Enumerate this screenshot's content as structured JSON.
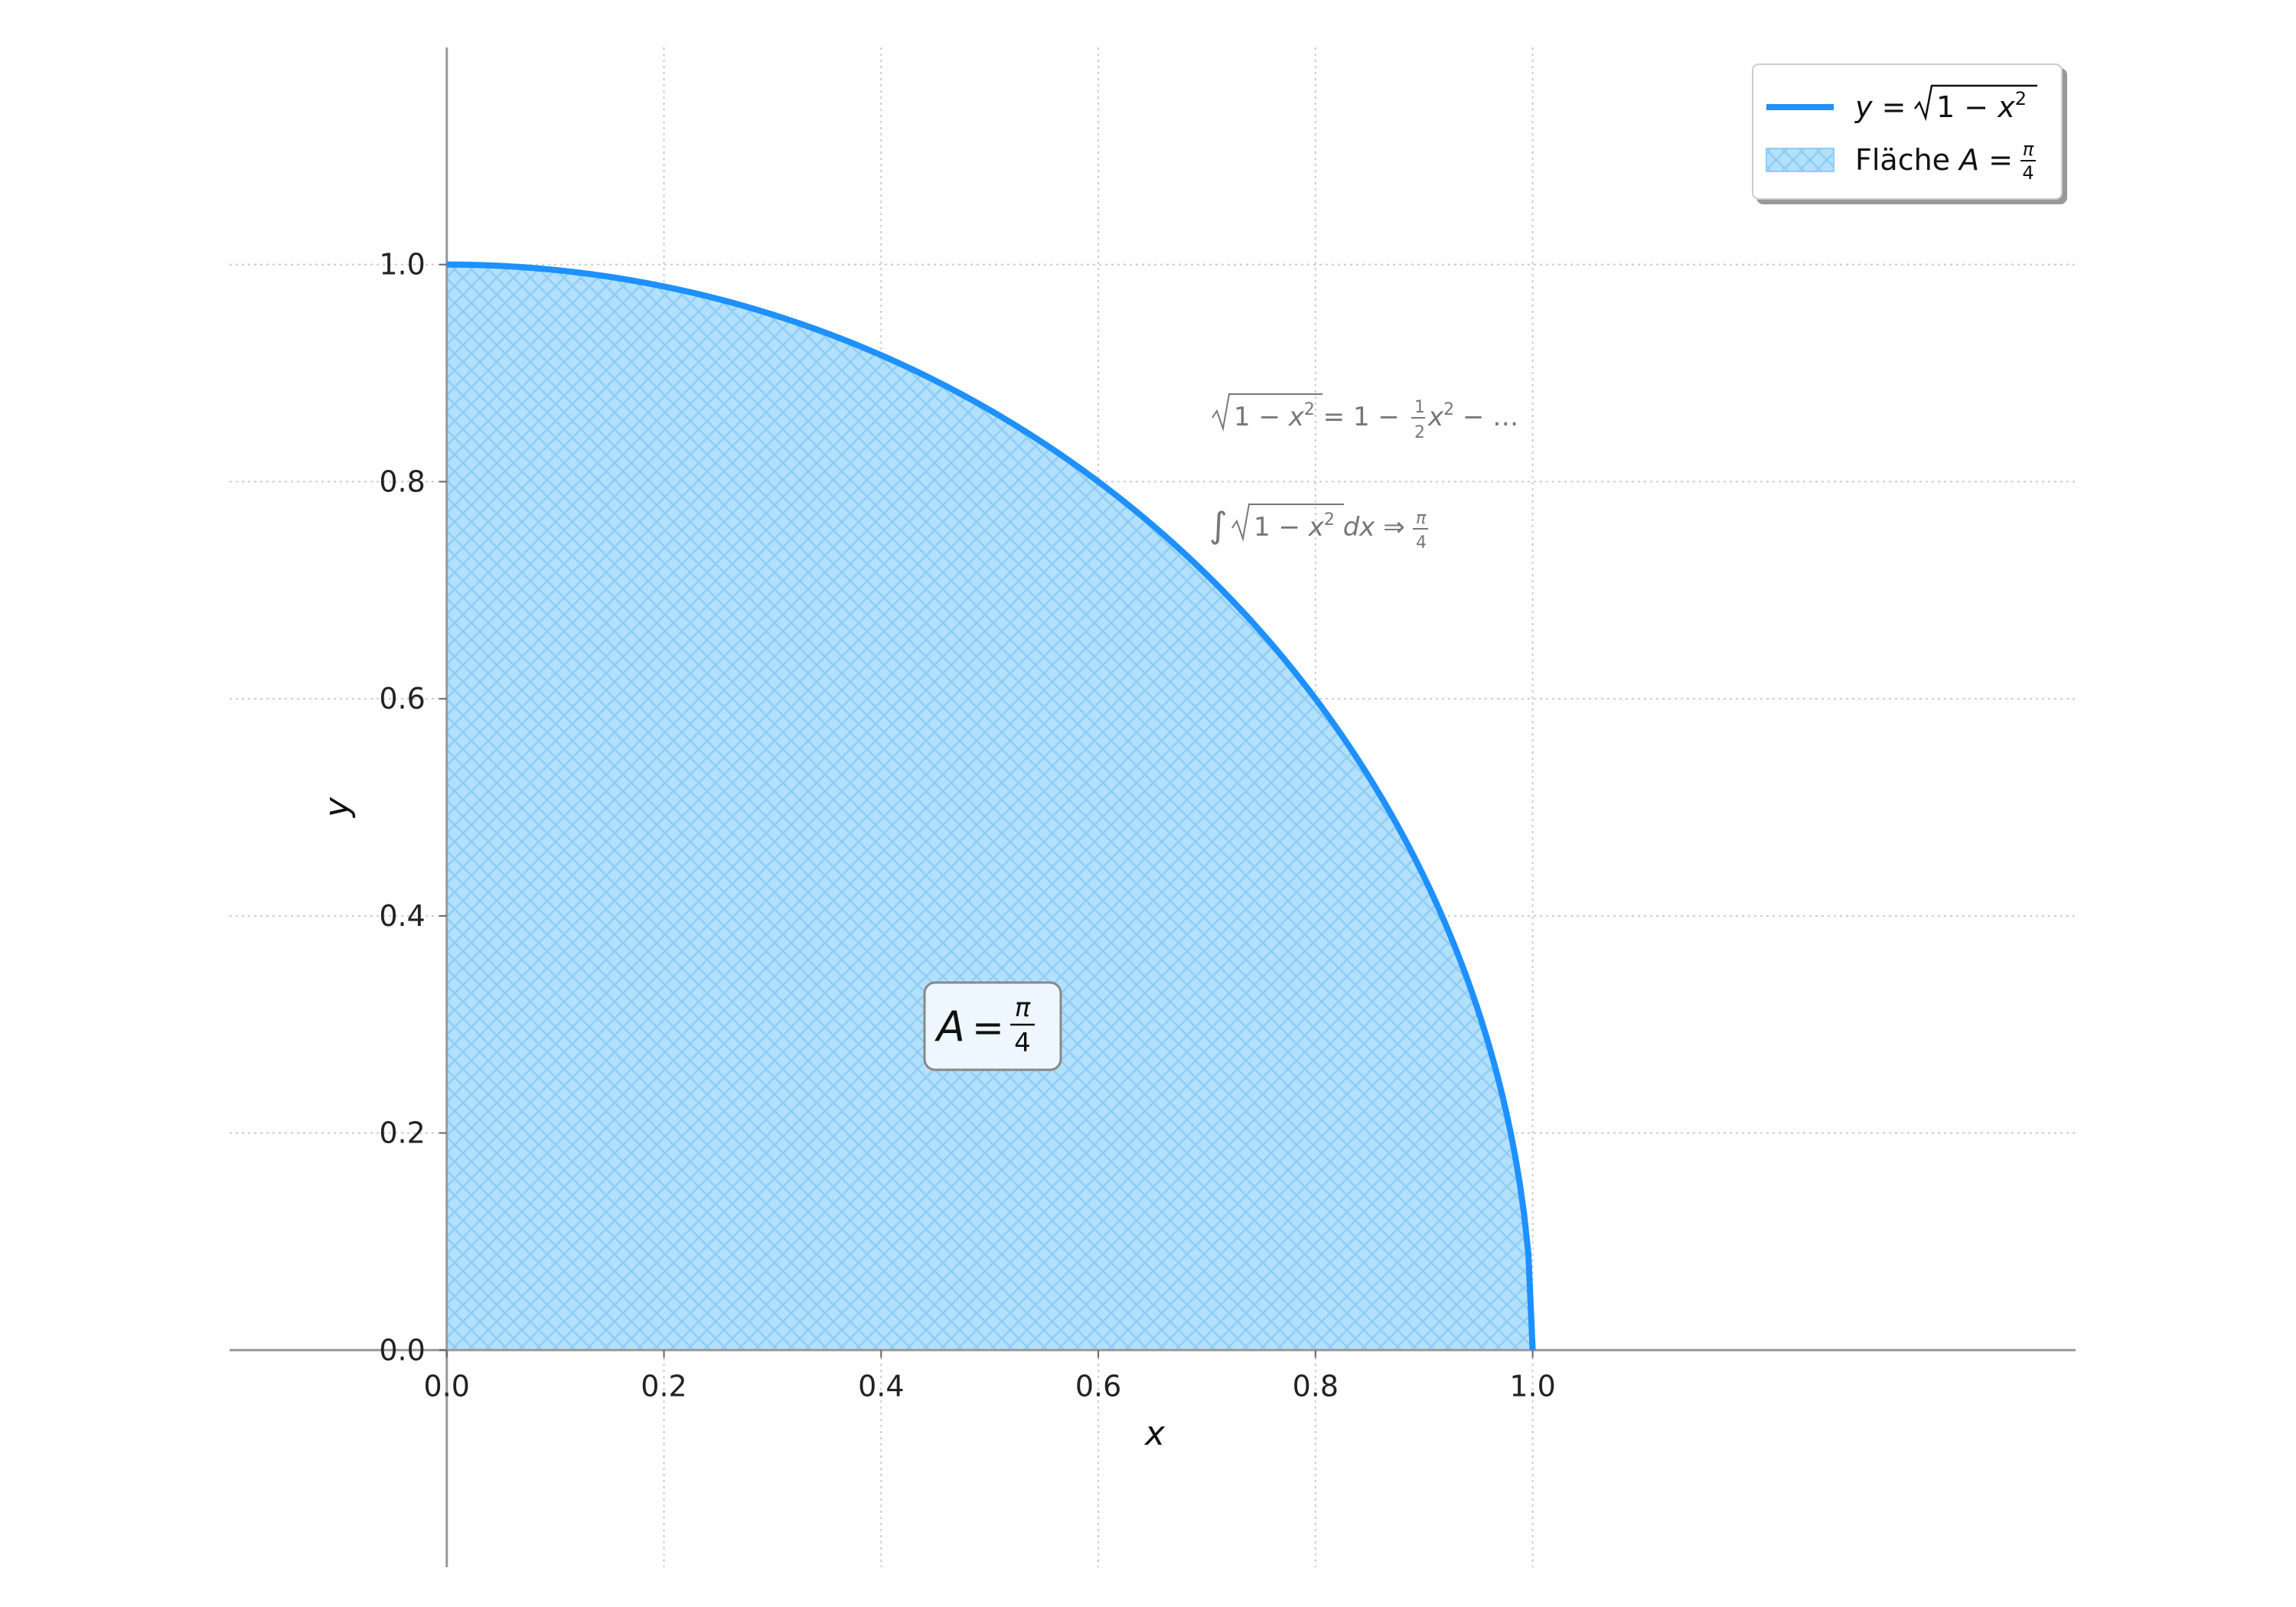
{
  "chart_data": {
    "type": "area",
    "xlabel": "x",
    "ylabel": "y",
    "xlim": [
      -0.2,
      1.5
    ],
    "ylim": [
      -0.2,
      1.2
    ],
    "x_ticks": [
      "0.0",
      "0.2",
      "0.4",
      "0.6",
      "0.8",
      "1.0"
    ],
    "y_ticks": [
      "0.0",
      "0.2",
      "0.4",
      "0.6",
      "0.8",
      "1.0"
    ],
    "x_tick_values": [
      0,
      0.2,
      0.4,
      0.6,
      0.8,
      1.0
    ],
    "y_tick_values": [
      0,
      0.2,
      0.4,
      0.6,
      0.8,
      1.0
    ],
    "grid": true,
    "legend_position": "top-right",
    "series": [
      {
        "name": "y = √(1 − x²)",
        "kind": "line",
        "color": "#1e90ff",
        "x": [
          0.0,
          0.1,
          0.2,
          0.3,
          0.4,
          0.5,
          0.6,
          0.7,
          0.8,
          0.9,
          0.95,
          0.99,
          1.0
        ],
        "y": [
          1.0,
          0.995,
          0.98,
          0.954,
          0.917,
          0.866,
          0.8,
          0.714,
          0.6,
          0.436,
          0.312,
          0.141,
          0.0
        ]
      },
      {
        "name": "Fläche A = π/4",
        "kind": "area",
        "color": "#87cefa",
        "hatch": "crosshatch",
        "x_range": [
          0,
          1
        ]
      }
    ],
    "annotations": [
      {
        "id": "area",
        "text": "A = π/4"
      },
      {
        "id": "series",
        "text": "√(1 − x²) = 1 − ½x² − …"
      },
      {
        "id": "integral",
        "text": "∫√(1 − x²) dx ⇒ π/4"
      }
    ]
  }
}
